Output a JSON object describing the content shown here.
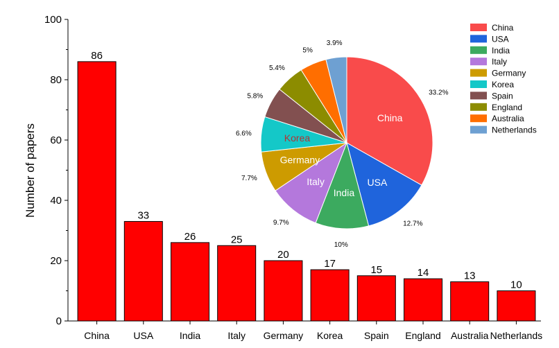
{
  "chart_data": [
    {
      "type": "bar",
      "ylabel": "Number of papers",
      "xlabel": "",
      "ylim": [
        0,
        100
      ],
      "yticks": [
        0,
        20,
        40,
        60,
        80,
        100
      ],
      "categories": [
        "China",
        "USA",
        "India",
        "Italy",
        "Germany",
        "Korea",
        "Spain",
        "England",
        "Australia",
        "Netherlands"
      ],
      "values": [
        86,
        33,
        26,
        25,
        20,
        17,
        15,
        14,
        13,
        10
      ],
      "data_labels": [
        "86",
        "33",
        "26",
        "25",
        "20",
        "17",
        "15",
        "14",
        "13",
        "10"
      ],
      "bar_color": "#ff0000"
    },
    {
      "type": "pie",
      "legend_position": "top-right",
      "slices": [
        {
          "label": "China",
          "percent_label": "33.2%",
          "value": 33.2,
          "color": "#f94b4b",
          "show_name": true,
          "name_color": "#ffffff"
        },
        {
          "label": "USA",
          "percent_label": "12.7%",
          "value": 12.7,
          "color": "#1f64dc",
          "show_name": true,
          "name_color": "#ffffff"
        },
        {
          "label": "India",
          "percent_label": "10%",
          "value": 10.0,
          "color": "#3caa5f",
          "show_name": true,
          "name_color": "#ffffff"
        },
        {
          "label": "Italy",
          "percent_label": "9.7%",
          "value": 9.7,
          "color": "#b478dc",
          "show_name": true,
          "name_color": "#ffffff"
        },
        {
          "label": "Germany",
          "percent_label": "7.7%",
          "value": 7.7,
          "color": "#cd9b00",
          "show_name": true,
          "name_color": "#ffffff"
        },
        {
          "label": "Korea",
          "percent_label": "6.6%",
          "value": 6.6,
          "color": "#14c8c8",
          "show_name": true,
          "name_color": "#b43232"
        },
        {
          "label": "Spain",
          "percent_label": "5.8%",
          "value": 5.8,
          "color": "#825050",
          "show_name": false,
          "name_color": "#ffffff"
        },
        {
          "label": "England",
          "percent_label": "5.4%",
          "value": 5.4,
          "color": "#8c8c00",
          "show_name": false,
          "name_color": "#ffffff"
        },
        {
          "label": "Australia",
          "percent_label": "5%",
          "value": 5.0,
          "color": "#ff6e00",
          "show_name": false,
          "name_color": "#ffffff"
        },
        {
          "label": "Netherlands",
          "percent_label": "3.9%",
          "value": 3.9,
          "color": "#6ea0d2",
          "show_name": false,
          "name_color": "#ffffff"
        }
      ]
    }
  ]
}
